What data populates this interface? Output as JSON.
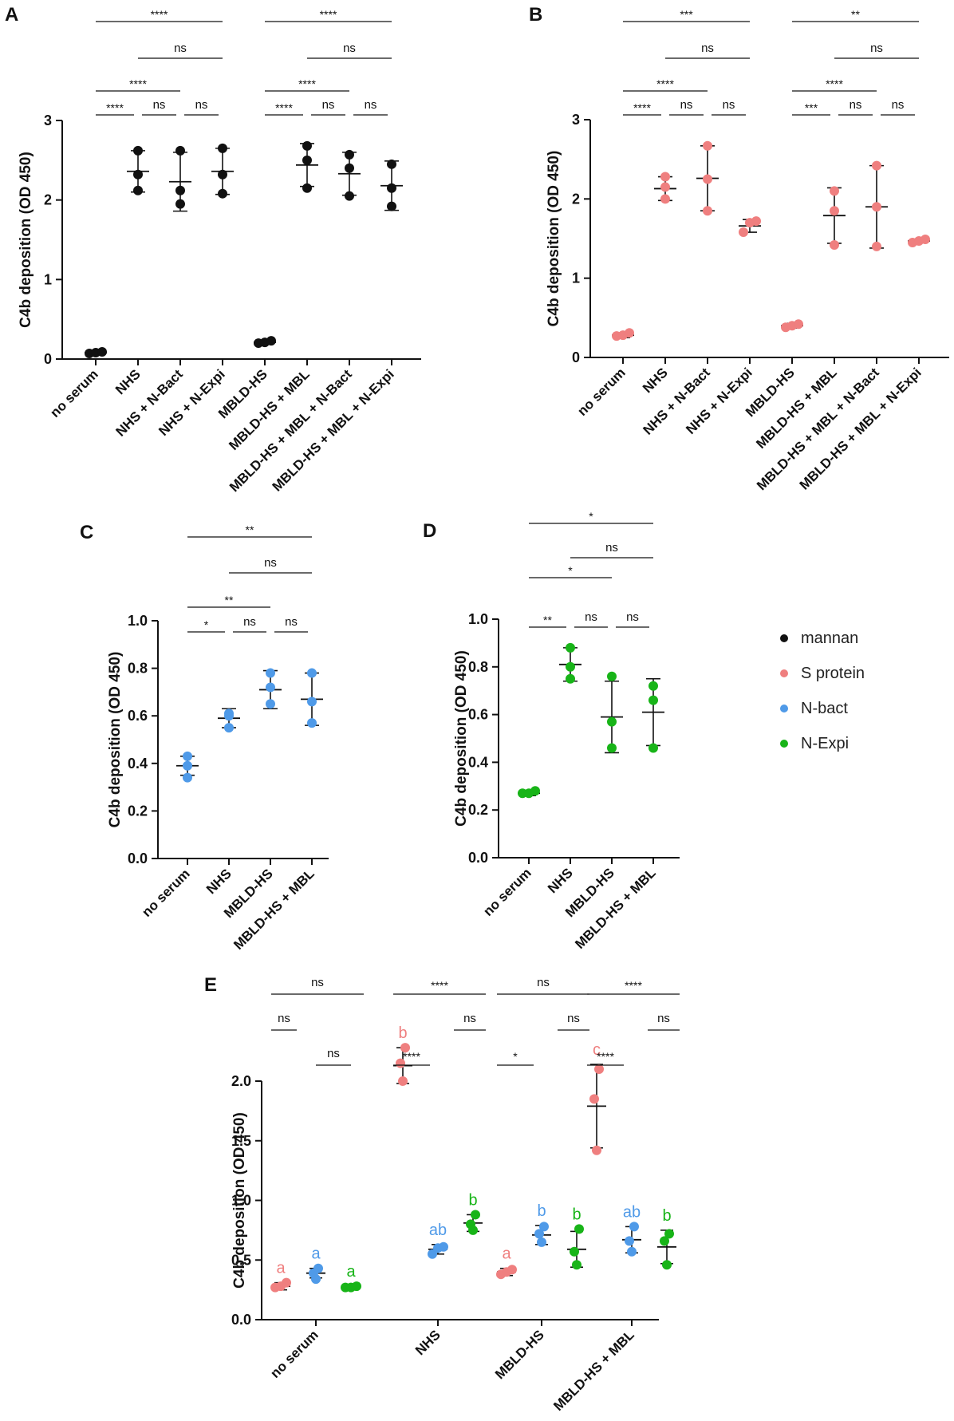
{
  "legend": [
    {
      "label": "mannan",
      "color": "#111111"
    },
    {
      "label": "S protein",
      "color": "#ef7f7f"
    },
    {
      "label": "N-bact",
      "color": "#4f9ae8"
    },
    {
      "label": "N-Expi",
      "color": "#18b418"
    }
  ],
  "chart_data": [
    {
      "panel": "A",
      "type": "scatter",
      "ylabel": "C4b deposition (OD 450)",
      "ylim": [
        0,
        3
      ],
      "yticks": [
        "0",
        "1",
        "2",
        "3"
      ],
      "color": "#111111",
      "categories": [
        "no serum",
        "NHS",
        "NHS + N-Bact",
        "NHS + N-Expi",
        "MBLD-HS",
        "MBLD-HS + MBL",
        "MBLD-HS + MBL + N-Bact",
        "MBLD-HS + MBL + N-Expi"
      ],
      "points": [
        [
          0.07,
          0.08,
          0.09
        ],
        [
          2.12,
          2.32,
          2.62
        ],
        [
          1.95,
          2.12,
          2.62
        ],
        [
          2.08,
          2.32,
          2.65
        ],
        [
          0.2,
          0.21,
          0.23
        ],
        [
          2.15,
          2.5,
          2.68
        ],
        [
          2.05,
          2.4,
          2.57
        ],
        [
          1.92,
          2.15,
          2.45
        ]
      ],
      "mean": [
        0.08,
        2.36,
        2.23,
        2.36,
        0.21,
        2.44,
        2.33,
        2.18
      ],
      "sd": [
        0.01,
        0.26,
        0.37,
        0.29,
        0.02,
        0.27,
        0.27,
        0.31
      ],
      "brackets": [
        {
          "from": 0,
          "to": 3,
          "label": "****",
          "row": 0
        },
        {
          "from": 1,
          "to": 3,
          "label": "ns",
          "row": 1
        },
        {
          "from": 0,
          "to": 2,
          "label": "****",
          "row": 2
        },
        {
          "from": 0,
          "to": 1,
          "label": "****",
          "row": 3
        },
        {
          "from": 1,
          "to": 2,
          "label": "ns",
          "row": 3
        },
        {
          "from": 2,
          "to": 3,
          "label": "ns",
          "row": 3
        },
        {
          "from": 4,
          "to": 7,
          "label": "****",
          "row": 0
        },
        {
          "from": 5,
          "to": 7,
          "label": "ns",
          "row": 1
        },
        {
          "from": 4,
          "to": 6,
          "label": "****",
          "row": 2
        },
        {
          "from": 4,
          "to": 5,
          "label": "****",
          "row": 3
        },
        {
          "from": 5,
          "to": 6,
          "label": "ns",
          "row": 3
        },
        {
          "from": 6,
          "to": 7,
          "label": "ns",
          "row": 3
        }
      ]
    },
    {
      "panel": "B",
      "type": "scatter",
      "ylabel": "C4b deposition (OD 450)",
      "ylim": [
        0,
        3
      ],
      "yticks": [
        "0",
        "1",
        "2",
        "3"
      ],
      "color": "#ef7f7f",
      "categories": [
        "no serum",
        "NHS",
        "NHS + N-Bact",
        "NHS + N-Expi",
        "MBLD-HS",
        "MBLD-HS + MBL",
        "MBLD-HS + MBL + N-Bact",
        "MBLD-HS + MBL + N-Expi"
      ],
      "points": [
        [
          0.27,
          0.28,
          0.31
        ],
        [
          2.0,
          2.15,
          2.28
        ],
        [
          1.85,
          2.25,
          2.67
        ],
        [
          1.58,
          1.7,
          1.72
        ],
        [
          0.38,
          0.4,
          0.42
        ],
        [
          1.42,
          1.85,
          2.1
        ],
        [
          1.4,
          1.9,
          2.42
        ],
        [
          1.45,
          1.47,
          1.49
        ]
      ],
      "mean": [
        0.28,
        2.13,
        2.26,
        1.66,
        0.4,
        1.79,
        1.9,
        1.47
      ],
      "sd": [
        0.03,
        0.15,
        0.41,
        0.08,
        0.03,
        0.35,
        0.52,
        0.02
      ],
      "brackets": [
        {
          "from": 0,
          "to": 3,
          "label": "***",
          "row": 0
        },
        {
          "from": 1,
          "to": 3,
          "label": "ns",
          "row": 1
        },
        {
          "from": 0,
          "to": 2,
          "label": "****",
          "row": 2
        },
        {
          "from": 0,
          "to": 1,
          "label": "****",
          "row": 3
        },
        {
          "from": 1,
          "to": 2,
          "label": "ns",
          "row": 3
        },
        {
          "from": 2,
          "to": 3,
          "label": "ns",
          "row": 3
        },
        {
          "from": 4,
          "to": 7,
          "label": "**",
          "row": 0
        },
        {
          "from": 5,
          "to": 7,
          "label": "ns",
          "row": 1
        },
        {
          "from": 4,
          "to": 6,
          "label": "****",
          "row": 2
        },
        {
          "from": 4,
          "to": 5,
          "label": "***",
          "row": 3
        },
        {
          "from": 5,
          "to": 6,
          "label": "ns",
          "row": 3
        },
        {
          "from": 6,
          "to": 7,
          "label": "ns",
          "row": 3
        }
      ]
    },
    {
      "panel": "C",
      "type": "scatter",
      "ylabel": "C4b deposition (OD 450)",
      "ylim": [
        0,
        1
      ],
      "yticks": [
        "0.0",
        "0.2",
        "0.4",
        "0.6",
        "0.8",
        "1.0"
      ],
      "color": "#4f9ae8",
      "categories": [
        "no serum",
        "NHS",
        "MBLD-HS",
        "MBLD-HS + MBL"
      ],
      "points": [
        [
          0.34,
          0.39,
          0.43
        ],
        [
          0.55,
          0.6,
          0.61
        ],
        [
          0.65,
          0.72,
          0.78
        ],
        [
          0.57,
          0.66,
          0.78
        ]
      ],
      "mean": [
        0.39,
        0.59,
        0.71,
        0.67
      ],
      "sd": [
        0.04,
        0.04,
        0.08,
        0.11
      ],
      "brackets": [
        {
          "from": 0,
          "to": 3,
          "label": "**",
          "row": 0
        },
        {
          "from": 1,
          "to": 3,
          "label": "ns",
          "row": 1
        },
        {
          "from": 0,
          "to": 2,
          "label": "**",
          "row": 2
        },
        {
          "from": 0,
          "to": 1,
          "label": "*",
          "row": 3
        },
        {
          "from": 1,
          "to": 2,
          "label": "ns",
          "row": 3
        },
        {
          "from": 2,
          "to": 3,
          "label": "ns",
          "row": 3
        }
      ]
    },
    {
      "panel": "D",
      "type": "scatter",
      "ylabel": "C4b deposition (OD 450)",
      "ylim": [
        0,
        1
      ],
      "yticks": [
        "0.0",
        "0.2",
        "0.4",
        "0.6",
        "0.8",
        "1.0"
      ],
      "color": "#18b418",
      "categories": [
        "no serum",
        "NHS",
        "MBLD-HS",
        "MBLD-HS + MBL"
      ],
      "points": [
        [
          0.27,
          0.27,
          0.28
        ],
        [
          0.75,
          0.8,
          0.88
        ],
        [
          0.46,
          0.57,
          0.76
        ],
        [
          0.46,
          0.66,
          0.72
        ]
      ],
      "mean": [
        0.27,
        0.81,
        0.59,
        0.61
      ],
      "sd": [
        0.01,
        0.07,
        0.15,
        0.14
      ],
      "brackets": [
        {
          "from": 0,
          "to": 3,
          "label": "*",
          "row": 0
        },
        {
          "from": 1,
          "to": 3,
          "label": "ns",
          "row": 1
        },
        {
          "from": 0,
          "to": 2,
          "label": "*",
          "row": 2
        },
        {
          "from": 0,
          "to": 1,
          "label": "**",
          "row": 3
        },
        {
          "from": 1,
          "to": 2,
          "label": "ns",
          "row": 3
        },
        {
          "from": 2,
          "to": 3,
          "label": "ns",
          "row": 3
        }
      ]
    },
    {
      "panel": "E",
      "type": "scatter",
      "ylabel": "C4b deposition (OD 450)",
      "ylim": [
        0,
        2
      ],
      "yticks": [
        "0.0",
        "0.5",
        "1.0",
        "1.5",
        "2.0"
      ],
      "categories": [
        "no serum",
        "NHS",
        "MBLD-HS",
        "MBLD-HS + MBL"
      ],
      "series": [
        {
          "name": "S protein",
          "color": "#ef7f7f",
          "points": [
            [
              0.27,
              0.28,
              0.31
            ],
            [
              2.0,
              2.15,
              2.28
            ],
            [
              0.38,
              0.4,
              0.42
            ],
            [
              1.42,
              1.85,
              2.1
            ]
          ],
          "mean": [
            0.28,
            2.13,
            0.4,
            1.79
          ],
          "sd": [
            0.03,
            0.15,
            0.03,
            0.35
          ],
          "letters": [
            "a",
            "b",
            "a",
            "c"
          ]
        },
        {
          "name": "N-bact",
          "color": "#4f9ae8",
          "points": [
            [
              0.34,
              0.39,
              0.43
            ],
            [
              0.55,
              0.6,
              0.61
            ],
            [
              0.65,
              0.72,
              0.78
            ],
            [
              0.57,
              0.66,
              0.78
            ]
          ],
          "mean": [
            0.39,
            0.59,
            0.71,
            0.67
          ],
          "sd": [
            0.04,
            0.04,
            0.08,
            0.11
          ],
          "letters": [
            "a",
            "ab",
            "b",
            "ab"
          ]
        },
        {
          "name": "N-Expi",
          "color": "#18b418",
          "points": [
            [
              0.27,
              0.27,
              0.28
            ],
            [
              0.75,
              0.8,
              0.88
            ],
            [
              0.46,
              0.57,
              0.76
            ],
            [
              0.46,
              0.66,
              0.72
            ]
          ],
          "mean": [
            0.27,
            0.81,
            0.59,
            0.61
          ],
          "sd": [
            0.01,
            0.07,
            0.15,
            0.14
          ],
          "letters": [
            "a",
            "b",
            "b",
            "b"
          ]
        }
      ],
      "comparisons": [
        {
          "top": "ns",
          "middle": "ns",
          "bottom": "ns"
        },
        {
          "top": "****",
          "middle": "ns",
          "bottom": "****"
        },
        {
          "top": "ns",
          "middle": "ns",
          "bottom": "*"
        },
        {
          "top": "****",
          "middle": "ns",
          "bottom": "****"
        }
      ]
    }
  ]
}
